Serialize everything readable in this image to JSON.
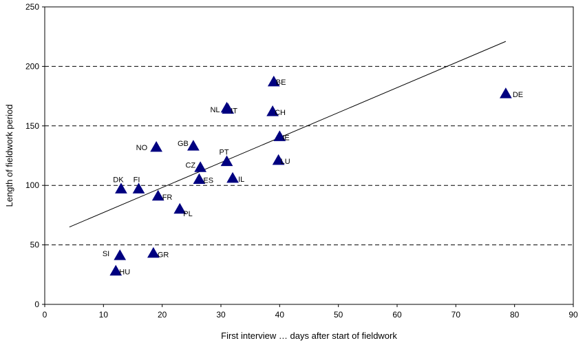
{
  "chart_data": {
    "type": "scatter",
    "title": "",
    "xlabel": "First interview … days after start of fieldwork",
    "ylabel": "Length of fieldwork period",
    "xlim": [
      0,
      90
    ],
    "ylim": [
      0,
      250
    ],
    "xticks": [
      0,
      10,
      20,
      30,
      40,
      50,
      60,
      70,
      80,
      90
    ],
    "yticks": [
      0,
      50,
      100,
      150,
      200,
      250
    ],
    "grid": "horizontal dashed",
    "legend": "none",
    "marker": "triangle",
    "marker_color": "#000080",
    "points": [
      {
        "label": "BE",
        "x": 39.0,
        "y": 187
      },
      {
        "label": "DE",
        "x": 78.5,
        "y": 177
      },
      {
        "label": "NL",
        "x": 31.0,
        "y": 165
      },
      {
        "label": "IT",
        "x": 31.2,
        "y": 164
      },
      {
        "label": "CH",
        "x": 38.8,
        "y": 162
      },
      {
        "label": "IE",
        "x": 40.0,
        "y": 141
      },
      {
        "label": "NO",
        "x": 19.0,
        "y": 132
      },
      {
        "label": "GB",
        "x": 25.3,
        "y": 133
      },
      {
        "label": "PT",
        "x": 31.0,
        "y": 120
      },
      {
        "label": "LU",
        "x": 39.8,
        "y": 121
      },
      {
        "label": "CZ",
        "x": 26.5,
        "y": 115
      },
      {
        "label": "DK",
        "x": 13.0,
        "y": 97
      },
      {
        "label": "FI",
        "x": 16.0,
        "y": 97
      },
      {
        "label": "ES",
        "x": 26.3,
        "y": 105
      },
      {
        "label": "IL",
        "x": 32.0,
        "y": 106
      },
      {
        "label": "FR",
        "x": 19.3,
        "y": 91
      },
      {
        "label": "PL",
        "x": 23.0,
        "y": 80
      },
      {
        "label": "SI",
        "x": 12.8,
        "y": 41
      },
      {
        "label": "GR",
        "x": 18.5,
        "y": 43
      },
      {
        "label": "HU",
        "x": 12.1,
        "y": 28
      }
    ],
    "trendline": {
      "x": [
        4.2,
        78.5
      ],
      "y": [
        65,
        221
      ]
    }
  }
}
